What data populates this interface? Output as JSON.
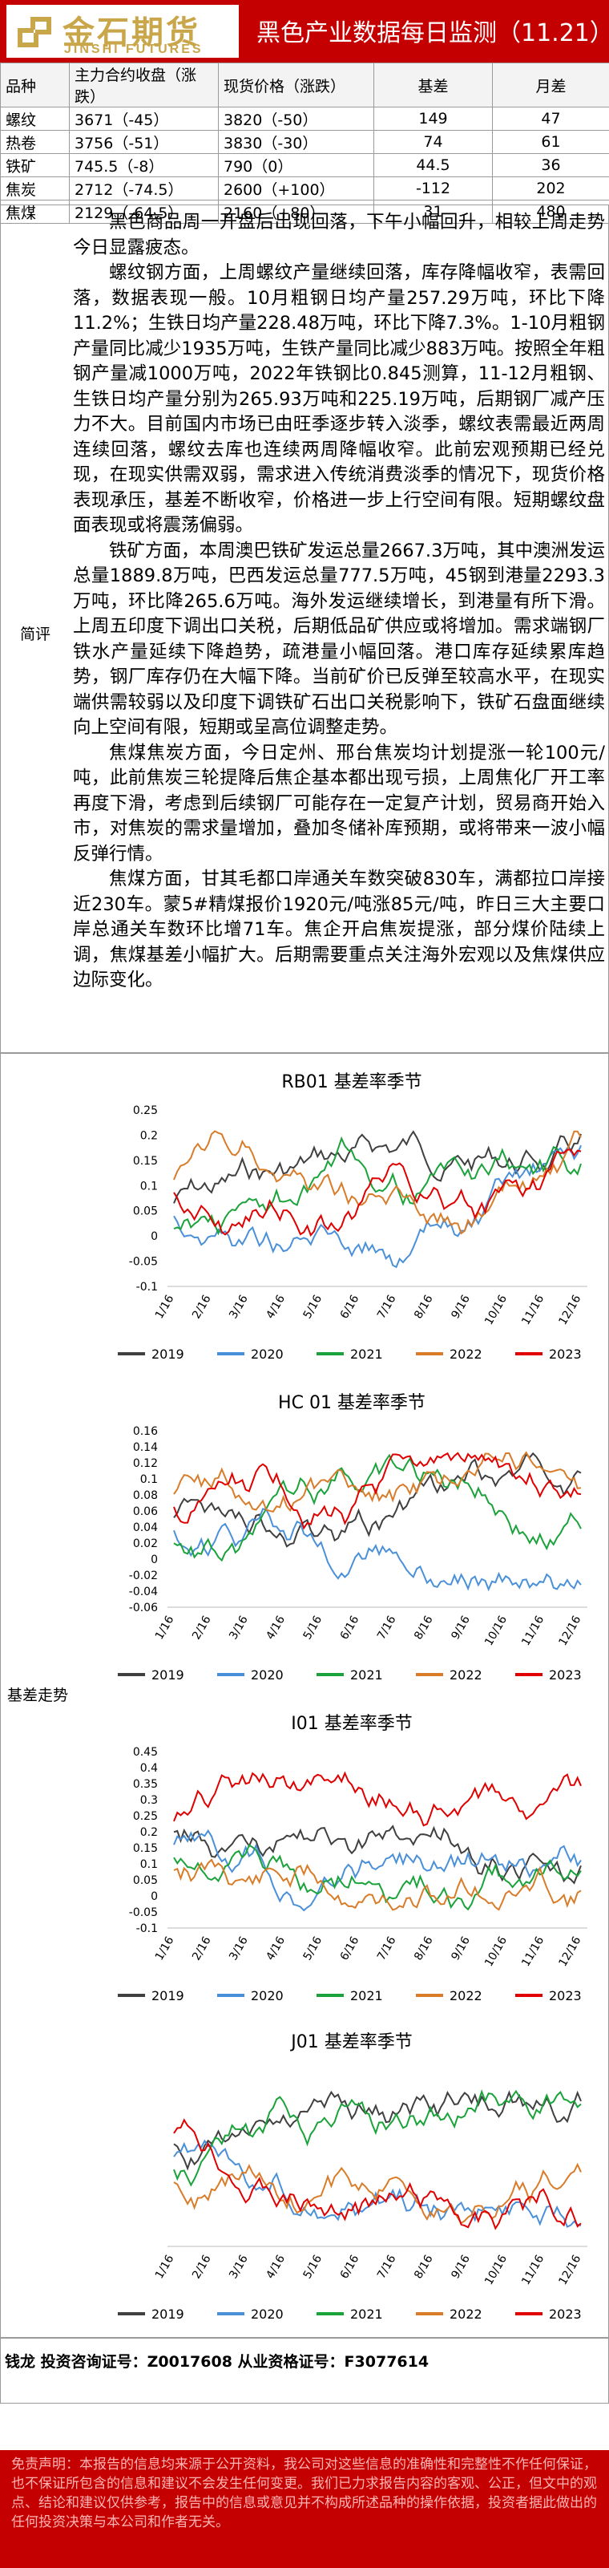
{
  "header": {
    "logo_cn": "金石期货",
    "logo_en": "JINSHI FUTURES",
    "title": "黑色产业数据每日监测（11.21）"
  },
  "quotes": {
    "columns": [
      "品种",
      "主力合约收盘（涨跌）",
      "现货价格（涨跌）",
      "基差",
      "月差"
    ],
    "rows": [
      [
        "螺纹",
        "3671（-45）",
        "3820（-50）",
        "149",
        "47"
      ],
      [
        "热卷",
        "3756（-51）",
        "3830（-30）",
        "74",
        "61"
      ],
      [
        "铁矿",
        "745.5（-8）",
        "790（0）",
        "44.5",
        "36"
      ],
      [
        "焦炭",
        "2712（-74.5）",
        "2600（+100）",
        "-112",
        "202"
      ],
      [
        "焦煤",
        "2129（-64.5）",
        "2160（+80）",
        "31",
        "480"
      ]
    ]
  },
  "review": {
    "label": "简评",
    "paragraphs": [
      "黑色商品周一开盘后出现回落，下午小幅回升，相较上周走势今日显露疲态。",
      "螺纹钢方面，上周螺纹产量继续回落，库存降幅收窄，表需回落，数据表现一般。10月粗钢日均产量257.29万吨，环比下降11.2%；生铁日均产量228.48万吨，环比下降7.3%。1-10月粗钢产量同比减少1935万吨，生铁产量同比减少883万吨。按照全年粗钢产量减1000万吨，2022年铁钢比0.845测算，11-12月粗钢、生铁日均产量分别为265.93万吨和225.19万吨，后期钢厂减产压力不大。目前国内市场已由旺季逐步转入淡季，螺纹表需最近两周连续回落，螺纹去库也连续两周降幅收窄。此前宏观预期已经兑现，在现实供需双弱，需求进入传统消费淡季的情况下，现货价格表现承压，基差不断收窄，价格进一步上行空间有限。短期螺纹盘面表现或将震荡偏弱。",
      "铁矿方面，本周澳巴铁矿发运总量2667.3万吨，其中澳洲发运总量1889.8万吨，巴西发运总量777.5万吨，45钢到港量2293.3万吨，环比降265.6万吨。海外发运继续增长，到港量有所下滑。上周五印度下调出口关税，后期低品矿供应或将增加。需求端钢厂铁水产量延续下降趋势，疏港量小幅回落。港口库存延续累库趋势，钢厂库存仍在大幅下降。当前矿价已反弹至较高水平，在现实端供需较弱以及印度下调铁矿石出口关税影响下，铁矿石盘面继续向上空间有限，短期或呈高位调整走势。",
      "焦煤焦炭方面，今日定州、邢台焦炭均计划提涨一轮100元/吨，此前焦炭三轮提降后焦企基本都出现亏损，上周焦化厂开工率再度下滑，考虑到后续钢厂可能存在一定复产计划，贸易商开始入市，对焦炭的需求量增加，叠加冬储补库预期，或将带来一波小幅反弹行情。",
      "焦煤方面，甘其毛都口岸通关车数突破830车，满都拉口岸接近230车。蒙5#精煤报价1920元/吨涨85元/吨，昨日三大主要口岸总通关车数环比增71车。焦企开启焦炭提涨，部分煤价陆续上调，焦煤基差小幅扩大。后期需要重点关注海外宏观以及焦煤供应边际变化。"
    ]
  },
  "basis": {
    "label": "基差走势",
    "charts": [
      {
        "name": "rb01",
        "title": "RB01 基差率季节",
        "y_ticks": [
          "0.25",
          "0.2",
          "0.15",
          "0.1",
          "0.05",
          "0",
          "-0.05",
          "-0.1"
        ],
        "legend": [
          "2019",
          "2020",
          "2021",
          "2022",
          "2023"
        ]
      },
      {
        "name": "hc01",
        "title": "HC 01 基差率季节",
        "y_ticks": [
          "0.16",
          "0.14",
          "0.12",
          "0.1",
          "0.08",
          "0.06",
          "0.04",
          "0.02",
          "0",
          "-0.02",
          "-0.04",
          "-0.06"
        ],
        "legend": [
          "2019",
          "2020",
          "2021",
          "2022",
          "2023"
        ]
      },
      {
        "name": "i01",
        "title": "I01 基差率季节",
        "y_ticks": [
          "0.45",
          "0.4",
          "0.35",
          "0.3",
          "0.25",
          "0.2",
          "0.15",
          "0.1",
          "0.05",
          "0",
          "-0.05",
          "-0.1"
        ],
        "legend": [
          "2019",
          "2020",
          "2021",
          "2022",
          "2023"
        ]
      },
      {
        "name": "j01",
        "title": "J01 基差率季节",
        "y_ticks": [],
        "legend": [
          "2019",
          "2020",
          "2021",
          "2022",
          "2023"
        ]
      }
    ],
    "x_ticks": [
      "1/16",
      "2/16",
      "3/16",
      "4/16",
      "5/16",
      "6/16",
      "7/16",
      "8/16",
      "9/16",
      "10/16",
      "11/16",
      "12/16"
    ],
    "series_colors": {
      "2019": "#404040",
      "2020": "#4a90d9",
      "2021": "#1aa33a",
      "2022": "#d87c2a",
      "2023": "#e00000"
    }
  },
  "footer": {
    "analyst": "钱龙 投资咨询证号：Z0017608 从业资格证号：F3077614"
  },
  "disclaimer": "免责声明：本报告的信息均来源于公开资料，我公司对这些信息的准确性和完整性不作任何保证，也不保证所包含的信息和建议不会发生任何变更。我们已力求报告内容的客观、公正，但文中的观点、结论和建议仅供参考，报告中的信息或意见并不构成所述品种的操作依据，投资者据此做出的任何投资决策与本公司和作者无关。"
}
